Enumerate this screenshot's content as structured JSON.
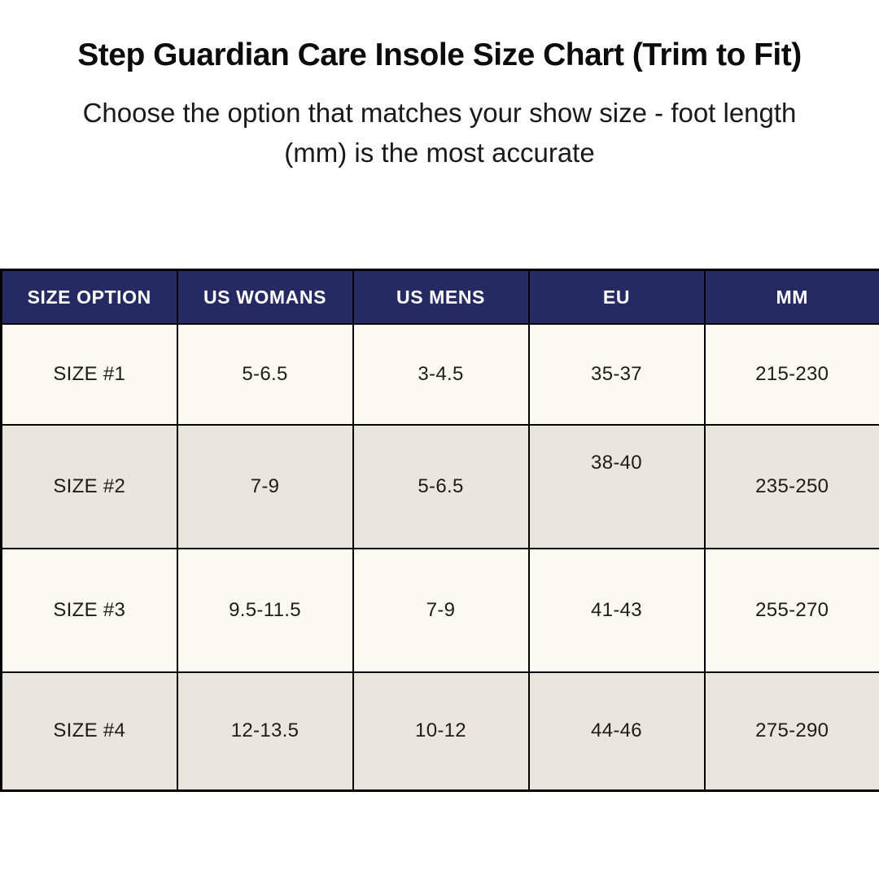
{
  "page": {
    "title": "Step Guardian Care Insole Size Chart (Trim to Fit)",
    "subtitle_lines": [
      "Choose the option that matches your show size - foot length",
      "(mm) is the most accurate"
    ]
  },
  "colors": {
    "header_bg": "#252a63",
    "header_text": "#ffffff",
    "row_light": "#fbfaf1",
    "row_dark": "#eae6dd",
    "border": "#000000",
    "page_bg": "#ffffff"
  },
  "chart_data": {
    "type": "table",
    "title": "Step Guardian Care Insole Size Chart (Trim to Fit)",
    "columns": [
      "SIZE OPTION",
      "US WOMANS",
      "US MENS",
      "EU",
      "MM"
    ],
    "rows": [
      [
        "SIZE #1",
        "5-6.5",
        "3-4.5",
        "35-37",
        "215-230"
      ],
      [
        "SIZE #2",
        "7-9",
        "5-6.5",
        "38-40",
        "235-250"
      ],
      [
        "SIZE #3",
        "9.5-11.5",
        "7-9",
        "41-43",
        "255-270"
      ],
      [
        "SIZE #4",
        "12-13.5",
        "10-12",
        "44-46",
        "275-290"
      ]
    ],
    "layout_hints": {
      "header_style": "navy background, white bold text",
      "row_striping": "odd rows cream, even rows beige",
      "special": "row 2 EU value rendered above vertical center"
    }
  }
}
